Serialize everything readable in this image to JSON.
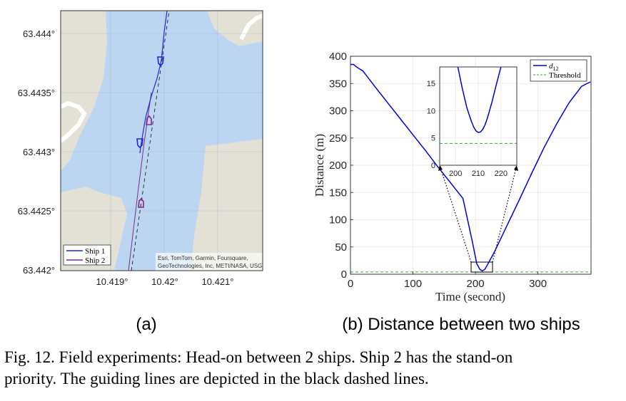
{
  "map_panel": {
    "y_ticks": [
      "63.444°",
      "63.4435°",
      "63.443°",
      "63.4425°",
      "63.442°"
    ],
    "x_ticks": [
      "10.419°",
      "10.42°",
      "10.421°"
    ],
    "legend": [
      "Ship 1",
      "Ship 2"
    ],
    "attribution": [
      "Esri, TomTom, Garmin, Foursquare,",
      "GeoTechnologies, Inc, METI/NASA, USGS"
    ],
    "colors": {
      "water": "#bcd6f2",
      "land": "#e3e1d5",
      "ship1": "#1f28e0",
      "ship2": "#7e2a86",
      "guide": "#222222"
    }
  },
  "chart_data": {
    "type": "line",
    "xlabel": "Time (second)",
    "ylabel": "Distance (m)",
    "xlim": [
      0,
      385
    ],
    "ylim": [
      0,
      400
    ],
    "x_ticks": [
      0,
      100,
      200,
      300
    ],
    "y_ticks": [
      0,
      50,
      100,
      150,
      200,
      250,
      300,
      350,
      400
    ],
    "legend_placement": "top-right",
    "series": [
      {
        "name": "d12",
        "style": "solid",
        "color": "#0000dd",
        "x": [
          0,
          5,
          10,
          20,
          40,
          60,
          80,
          100,
          120,
          140,
          160,
          180,
          195,
          202,
          207,
          211,
          215,
          220,
          230,
          250,
          270,
          290,
          310,
          330,
          350,
          370,
          384
        ],
        "y": [
          385,
          385,
          380,
          373,
          343,
          314,
          285,
          256,
          227,
          197,
          168,
          139,
          60,
          20,
          9,
          6,
          9,
          19,
          40,
          88,
          136,
          185,
          233,
          276,
          315,
          345,
          353
        ]
      },
      {
        "name": "Threshold",
        "style": "dashed",
        "color": "#22bb22",
        "x": [
          0,
          385
        ],
        "y": [
          4,
          4
        ]
      }
    ],
    "inset": {
      "xlim": [
        193,
        227
      ],
      "ylim": [
        0,
        18
      ],
      "x_ticks": [
        200,
        210,
        220
      ],
      "y_ticks": [
        0,
        5,
        10,
        15
      ],
      "x": [
        201,
        203,
        205,
        207,
        208,
        209,
        210,
        211,
        212,
        213,
        214,
        216,
        218,
        220
      ],
      "y": [
        18,
        14,
        10.5,
        8,
        7,
        6.3,
        6,
        6.1,
        6.6,
        7.4,
        8.6,
        11.5,
        14.8,
        18
      ],
      "threshold": 4
    }
  },
  "labels": {
    "legend_d12_base": "d",
    "legend_d12_sub": "12",
    "legend_threshold": "Threshold"
  },
  "sub_captions": {
    "a": "(a)",
    "b": "(b) Distance between two ships"
  },
  "caption": {
    "line1": "Fig. 12.  Field experiments: Head-on between 2 ships. Ship 2 has the stand-on",
    "line2": "priority. The guiding lines are depicted in the black dashed lines."
  }
}
